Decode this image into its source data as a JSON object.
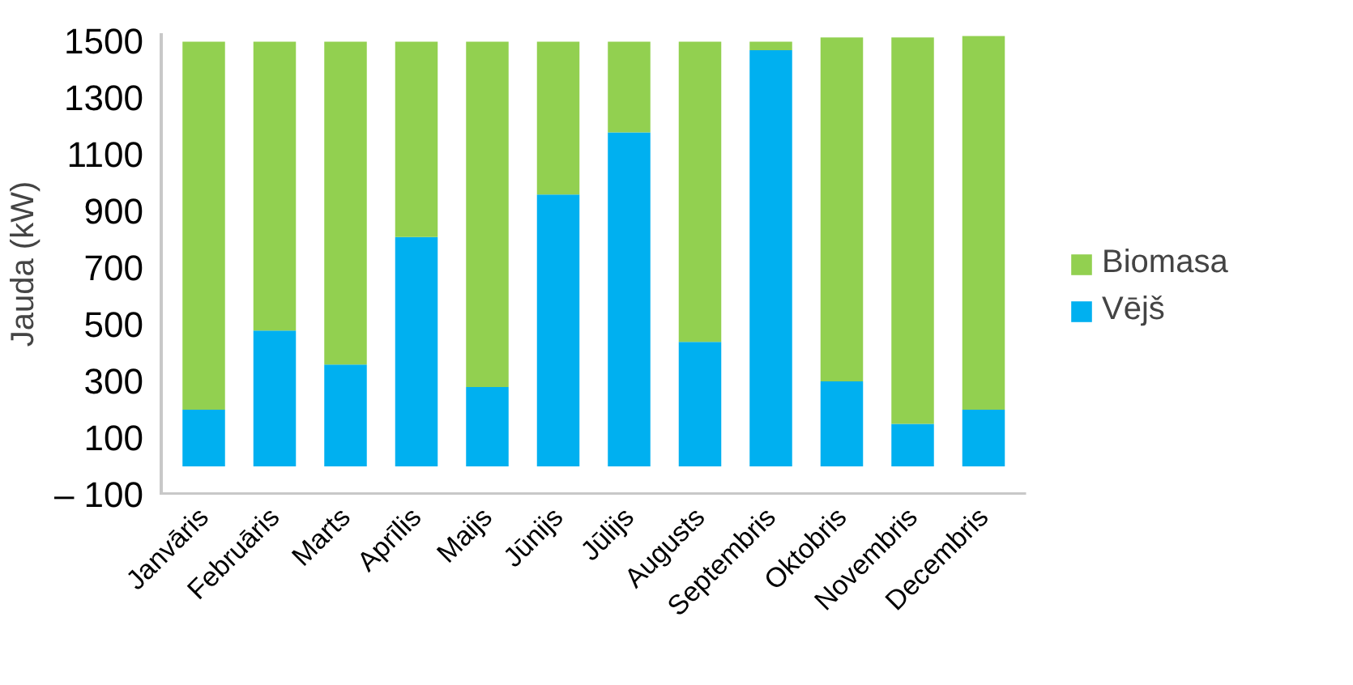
{
  "chart_data": {
    "type": "bar",
    "ylabel": "Jauda (kW)",
    "stacked": true,
    "legend": "right",
    "grid": false,
    "categories": [
      "Janvāris",
      "Februāris",
      "Marts",
      "Aprīlis",
      "Maijs",
      "Jūnijs",
      "Jūlijs",
      "Augusts",
      "Septembris",
      "Oktobris",
      "Novembris",
      "Decembris"
    ],
    "series": [
      {
        "name": "Vējš",
        "color": "#00b0f0",
        "values": [
          200,
          480,
          360,
          810,
          280,
          960,
          1180,
          440,
          1470,
          300,
          150,
          200
        ]
      },
      {
        "name": "Biomasa",
        "color": "#92d050",
        "values": [
          1300,
          1020,
          1140,
          690,
          1220,
          540,
          320,
          1060,
          30,
          1215,
          1365,
          1320
        ]
      }
    ],
    "ylim": [
      -100,
      1530
    ],
    "yticks": [
      {
        "value": -100,
        "label": "– 100"
      },
      100,
      300,
      500,
      700,
      900,
      1100,
      1300,
      1500
    ]
  }
}
